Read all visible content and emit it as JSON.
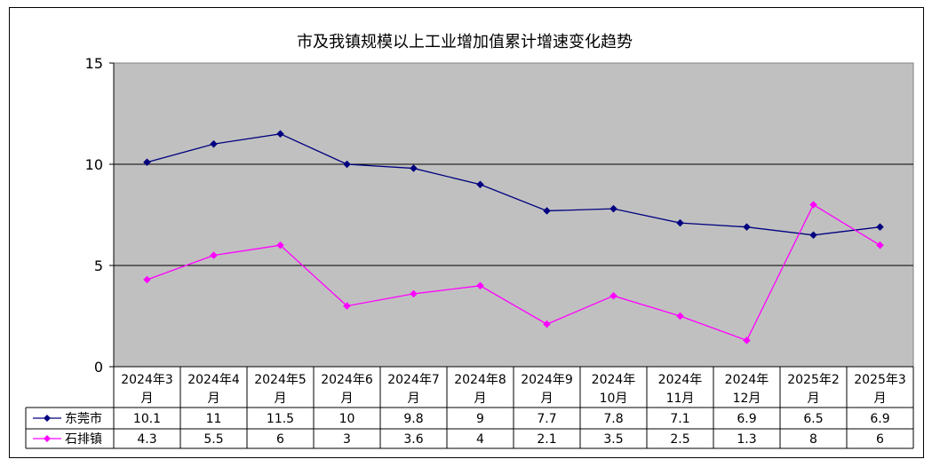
{
  "chart_data": {
    "type": "line",
    "title": "市及我镇规模以上工业增加值累计增速变化趋势",
    "categories": [
      [
        "2024年3",
        "月"
      ],
      [
        "2024年4",
        "月"
      ],
      [
        "2024年5",
        "月"
      ],
      [
        "2024年6",
        "月"
      ],
      [
        "2024年7",
        "月"
      ],
      [
        "2024年8",
        "月"
      ],
      [
        "2024年9",
        "月"
      ],
      [
        "2024年",
        "10月"
      ],
      [
        "2024年",
        "11月"
      ],
      [
        "2024年",
        "12月"
      ],
      [
        "2025年2",
        "月"
      ],
      [
        "2025年3",
        "月"
      ]
    ],
    "ylim": [
      0,
      15
    ],
    "yticks": [
      0,
      5,
      10,
      15
    ],
    "grid": true,
    "plot_background": "#c0c0c0",
    "series": [
      {
        "name": "东莞市",
        "color": "#000080",
        "marker": "diamond",
        "values": [
          10.1,
          11,
          11.5,
          10,
          9.8,
          9,
          7.7,
          7.8,
          7.1,
          6.9,
          6.5,
          6.9
        ],
        "table_values": [
          "10.1",
          "11",
          "11.5",
          "10",
          "9.8",
          "9",
          "7.7",
          "7.8",
          "7.1",
          "6.9",
          "6.5",
          "6.9"
        ]
      },
      {
        "name": "石排镇",
        "color": "#ff00ff",
        "marker": "diamond",
        "values": [
          4.3,
          5.5,
          6,
          3,
          3.6,
          4,
          2.1,
          3.5,
          2.5,
          1.3,
          8,
          6
        ],
        "table_values": [
          "4.3",
          "5.5",
          "6",
          "3",
          "3.6",
          "4",
          "2.1",
          "3.5",
          "2.5",
          "1.3",
          "8",
          "6"
        ]
      }
    ]
  }
}
